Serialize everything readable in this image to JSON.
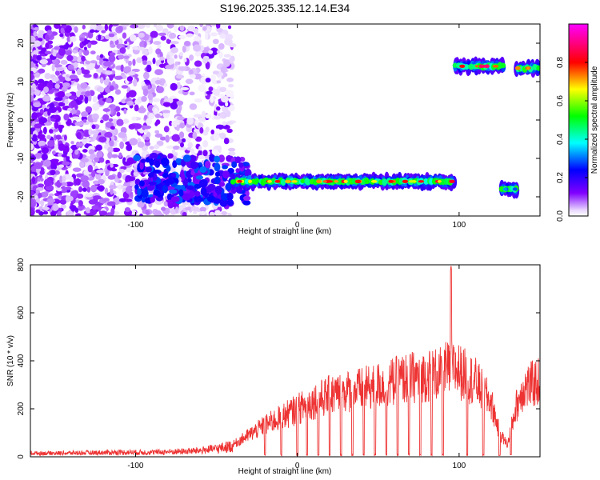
{
  "figure": {
    "title": "S196.2025.335.12.14.E34"
  },
  "chart_data": [
    {
      "type": "heatmap",
      "name": "spectrogram",
      "title": "S196.2025.335.12.14.E34",
      "xlabel": "Height of straight line (km)",
      "ylabel": "Frequency (Hz)",
      "xlim": [
        -165,
        150
      ],
      "ylim": [
        -25,
        25
      ],
      "xticks": [
        -100,
        0,
        100
      ],
      "yticks": [
        -20,
        -10,
        0,
        10,
        20
      ],
      "grid": false,
      "colorbar": {
        "label": "Normalized spectral amplitude",
        "range": [
          0,
          1
        ],
        "ticks": [
          "0.0",
          "0.2",
          "0.4",
          "0.6",
          "0.8"
        ],
        "colormap": "rainbow (white-violet-blue-cyan-green-yellow-red-magenta)",
        "colors": [
          "#ffffff",
          "#8000ff",
          "#0000ff",
          "#00ffff",
          "#00ff00",
          "#ffff00",
          "#ff0000",
          "#ff00ff"
        ]
      },
      "features": [
        {
          "label": "noise",
          "x_range": [
            -165,
            -40
          ],
          "y_range": [
            -25,
            25
          ],
          "amplitude": 0.15
        },
        {
          "label": "descending onset",
          "x_range": [
            -100,
            -30
          ],
          "y_start": -15,
          "y_end": -16,
          "amplitude": 0.25
        },
        {
          "label": "main band",
          "x_range": [
            -40,
            97
          ],
          "y_center": -16,
          "amplitude": 0.75
        },
        {
          "label": "upper band",
          "x_range": [
            97,
            128
          ],
          "y_center": 14,
          "amplitude": 0.85
        },
        {
          "label": "lower segment",
          "x_range": [
            126,
            136
          ],
          "y_center": -18,
          "amplitude": 0.4
        },
        {
          "label": "upper band continued",
          "x_range": [
            135,
            150
          ],
          "y_center": 13.5,
          "amplitude": 0.8
        }
      ]
    },
    {
      "type": "line",
      "name": "snr",
      "xlabel": "Height of straight line (km)",
      "ylabel": "SNR (10 * v/v)",
      "xlim": [
        -165,
        150
      ],
      "ylim": [
        0,
        800
      ],
      "xticks": [
        -100,
        0,
        100
      ],
      "yticks": [
        0,
        200,
        400,
        600,
        800
      ],
      "grid": false,
      "color": "#ee3333",
      "series": [
        {
          "x": [
            -165,
            -150,
            -130,
            -110,
            -90,
            -70,
            -60,
            -50,
            -40,
            -30,
            -20,
            -10,
            0,
            10,
            20,
            30,
            40,
            50,
            60,
            70,
            80,
            90,
            95,
            100,
            110,
            120,
            125,
            130,
            135,
            140,
            150
          ],
          "values": [
            20,
            20,
            22,
            25,
            25,
            30,
            35,
            45,
            60,
            110,
            160,
            200,
            240,
            280,
            310,
            330,
            340,
            360,
            380,
            400,
            410,
            420,
            800,
            430,
            380,
            270,
            120,
            60,
            250,
            350,
            380
          ]
        }
      ],
      "dropouts_x": [
        -20,
        -10,
        0,
        6,
        13,
        20,
        27,
        34,
        41,
        48,
        55,
        62,
        69,
        76,
        83,
        90,
        105,
        115,
        125,
        132
      ]
    }
  ]
}
